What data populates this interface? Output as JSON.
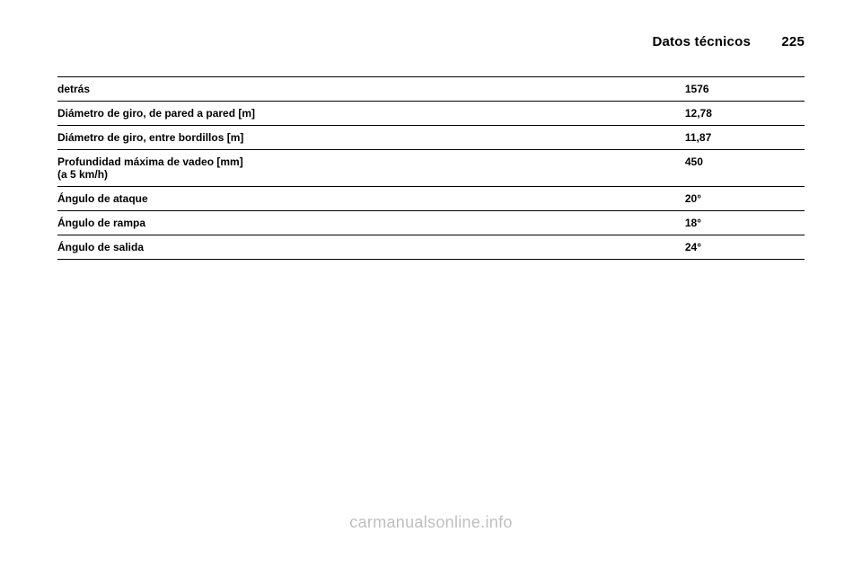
{
  "header": {
    "title": "Datos técnicos",
    "page_number": "225"
  },
  "table": {
    "columns": [
      "label",
      "value"
    ],
    "col_widths_pct": [
      84,
      16
    ],
    "row_border_color": "#000000",
    "font_size_pt": 12,
    "font_weight": "bold",
    "rows": [
      {
        "label": "detrás",
        "sublabel": "",
        "value": "1576"
      },
      {
        "label": "Diámetro de giro, de pared a pared [m]",
        "sublabel": "",
        "value": "12,78"
      },
      {
        "label": "Diámetro de giro, entre bordillos [m]",
        "sublabel": "",
        "value": "11,87"
      },
      {
        "label": "Profundidad máxima de vadeo [mm]",
        "sublabel": "(a 5 km/h)",
        "value": "450"
      },
      {
        "label": "Ángulo de ataque",
        "sublabel": "",
        "value": "20°"
      },
      {
        "label": "Ángulo de rampa",
        "sublabel": "",
        "value": "18°"
      },
      {
        "label": "Ángulo de salida",
        "sublabel": "",
        "value": "24°"
      }
    ]
  },
  "watermark": {
    "text": "carmanualsonline.info",
    "color": "#bfbfbf",
    "font_size_pt": 18
  },
  "page_bg": "#ffffff"
}
